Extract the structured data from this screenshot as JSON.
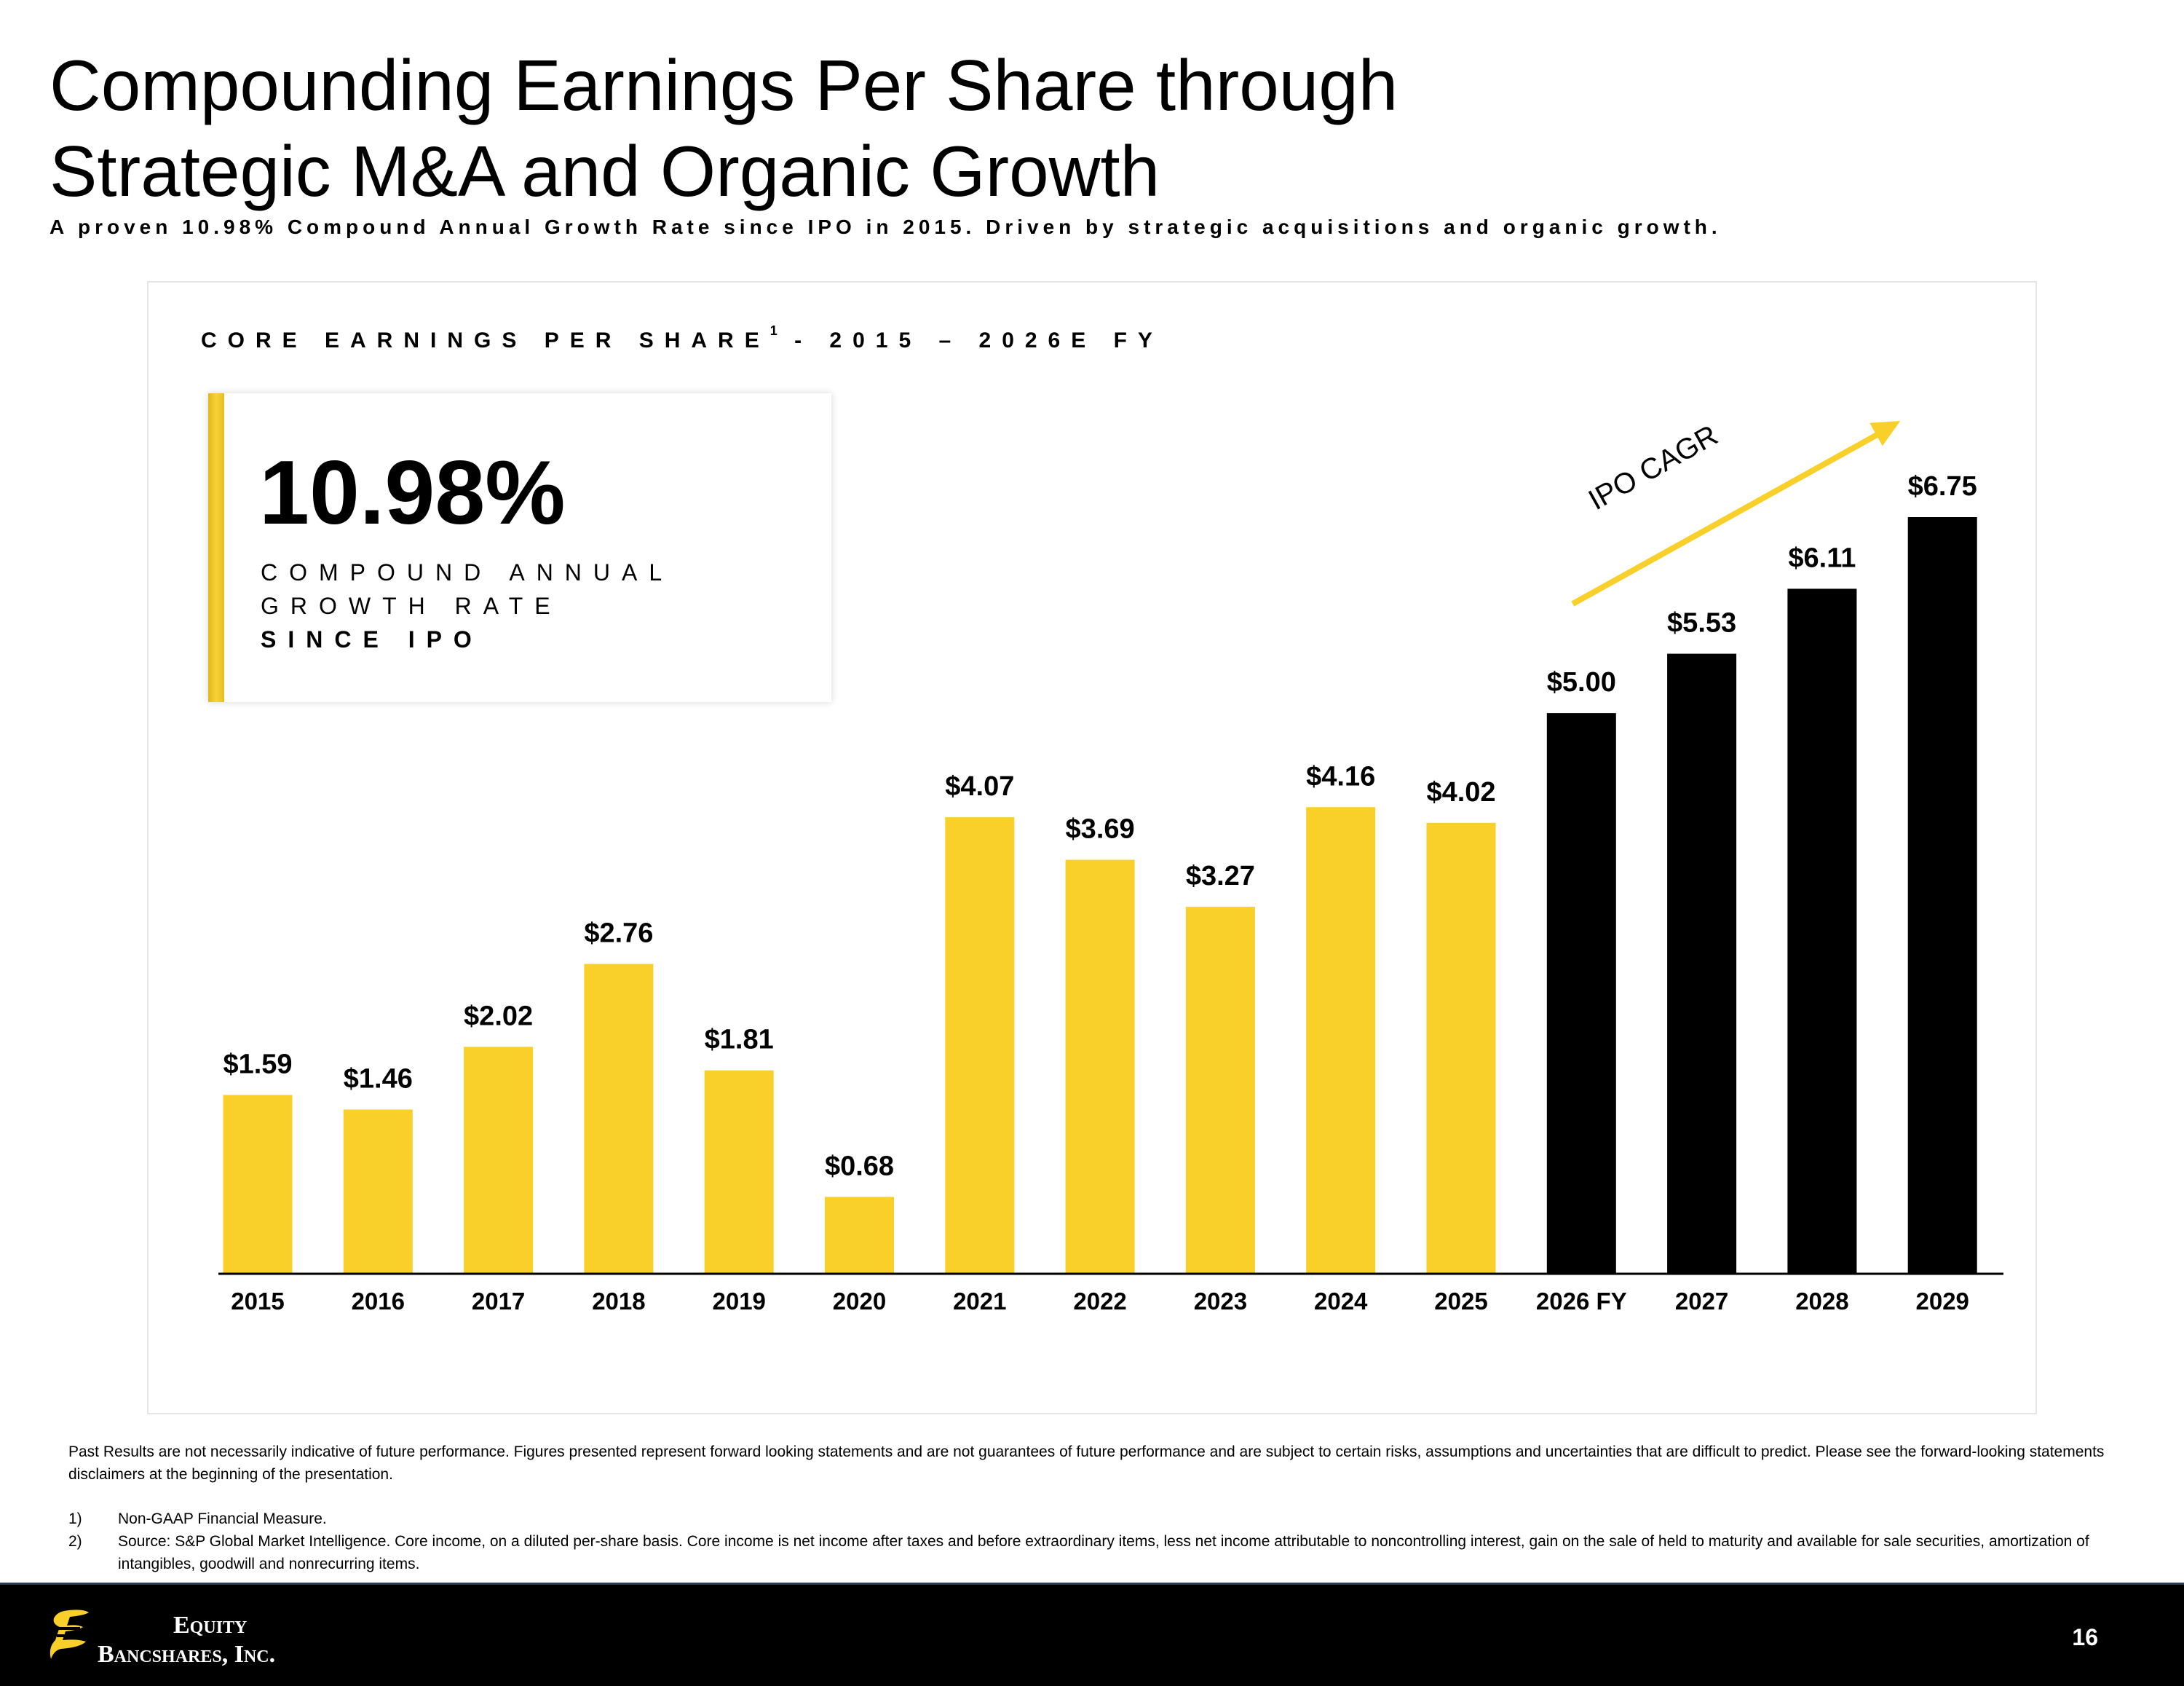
{
  "slide": {
    "title_line1": "Compounding Earnings Per Share through",
    "title_line2": "Strategic M&A and Organic Growth",
    "subtitle": "A proven 10.98% Compound Annual Growth Rate since IPO in 2015.  Driven by strategic acquisitions and organic growth.",
    "page_number": "16"
  },
  "kpi": {
    "value": "10.98%",
    "label_line1": "COMPOUND ANNUAL",
    "label_line2": "GROWTH RATE",
    "label_line3": "SINCE IPO",
    "accent_color": "#F9D02A"
  },
  "chart_heading": {
    "text": "CORE EARNINGS PER SHARE",
    "superscript": "1",
    "range": " - 2015 – 2026E FY"
  },
  "chart_data": {
    "type": "bar",
    "categories": [
      "2015",
      "2016",
      "2017",
      "2018",
      "2019",
      "2020",
      "2021",
      "2022",
      "2023",
      "2024",
      "2025",
      "2026 FY",
      "2027",
      "2028",
      "2029"
    ],
    "values": [
      1.59,
      1.46,
      2.02,
      2.76,
      1.81,
      0.68,
      4.07,
      3.69,
      3.27,
      4.16,
      4.02,
      5.0,
      5.53,
      6.11,
      6.75
    ],
    "data_labels": [
      "$1.59",
      "$1.46",
      "$2.02",
      "$2.76",
      "$1.81",
      "$0.68",
      "$4.07",
      "$3.69",
      "$3.27",
      "$4.16",
      "$4.02",
      "$5.00",
      "$5.53",
      "$6.11",
      "$6.75"
    ],
    "bar_colors": [
      "#F9D02A",
      "#F9D02A",
      "#F9D02A",
      "#F9D02A",
      "#F9D02A",
      "#F9D02A",
      "#F9D02A",
      "#F9D02A",
      "#F9D02A",
      "#F9D02A",
      "#F9D02A",
      "#000000",
      "#000000",
      "#000000",
      "#000000"
    ],
    "ylim": [
      0,
      6.75
    ],
    "grid": false,
    "legend": "none",
    "annotation": {
      "text": "IPO CAGR",
      "arrow_from": "2026 FY",
      "arrow_to": "2029",
      "color": "#F9D02A"
    }
  },
  "footnotes": {
    "disclaimer": "Past Results are not necessarily indicative of future performance. Figures presented represent forward looking statements and are not guarantees of future performance and are subject to certain risks, assumptions and uncertainties that are difficult to predict. Please see the forward-looking statements disclaimers at the beginning of the presentation.",
    "items": [
      {
        "num": "1)",
        "text": "Non-GAAP Financial Measure."
      },
      {
        "num": "2)",
        "text": "Source: S&P Global Market Intelligence. Core income, on a diluted per-share basis. Core income is net income after taxes and before extraordinary items, less net income attributable to noncontrolling interest, gain on the sale of held to maturity and available for sale securities, amortization of intangibles, goodwill and nonrecurring items."
      }
    ]
  },
  "footer": {
    "logo_line1": "Equity",
    "logo_line2": "Bancshares, Inc.",
    "logo_icon": "equity-e-icon",
    "background": "#000000"
  }
}
